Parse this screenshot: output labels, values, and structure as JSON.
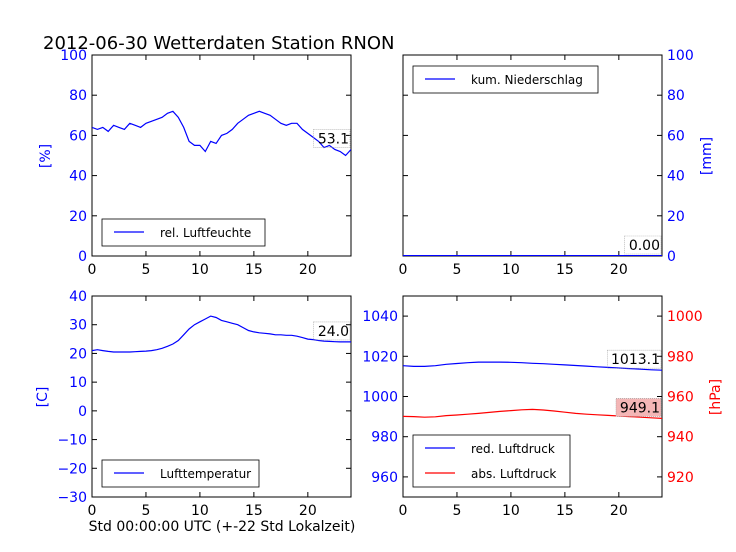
{
  "title": "2012-06-30 Wetterdaten Station RNON",
  "xlabel": "Std 00:00:00 UTC (+-22 Std Lokalzeit)",
  "colors": {
    "blue": "#0000ff",
    "red": "#ff0000",
    "axis": "#000000",
    "anno_bg": "#f4b6b6"
  },
  "chart_data": [
    {
      "type": "line",
      "id": "humidity",
      "ylabel": "[%]",
      "xlim": [
        0,
        24
      ],
      "ylim": [
        0,
        100
      ],
      "xticks": [
        0,
        5,
        10,
        15,
        20
      ],
      "yticks": [
        0,
        20,
        40,
        60,
        80,
        100
      ],
      "legend": "bottom-left",
      "annotation": "53.1",
      "series": [
        {
          "name": "rel. Luftfeuchte",
          "color": "#0000ff",
          "x": [
            0,
            0.5,
            1,
            1.5,
            2,
            2.5,
            3,
            3.5,
            4,
            4.5,
            5,
            5.5,
            6,
            6.5,
            7,
            7.5,
            8,
            8.5,
            9,
            9.5,
            10,
            10.5,
            11,
            11.5,
            12,
            12.5,
            13,
            13.5,
            14,
            14.5,
            15,
            15.5,
            16,
            16.5,
            17,
            17.5,
            18,
            18.5,
            19,
            19.5,
            20,
            20.5,
            21,
            21.5,
            22,
            22.5,
            23,
            23.5,
            24
          ],
          "y": [
            64,
            63,
            64,
            62,
            65,
            64,
            63,
            66,
            65,
            64,
            66,
            67,
            68,
            69,
            71,
            72,
            69,
            64,
            57,
            55,
            55,
            52,
            57,
            56,
            60,
            61,
            63,
            66,
            68,
            70,
            71,
            72,
            71,
            70,
            68,
            66,
            65,
            66,
            66,
            63,
            61,
            59,
            57,
            54,
            55,
            53,
            52,
            50,
            53
          ]
        }
      ]
    },
    {
      "type": "line",
      "id": "precipitation",
      "ylabel": "[mm]",
      "xlim": [
        0,
        24
      ],
      "ylim": [
        0,
        100
      ],
      "xticks": [
        0,
        5,
        10,
        15,
        20
      ],
      "yticks": [
        0,
        20,
        40,
        60,
        80,
        100
      ],
      "legend": "top-left",
      "annotation": "0.00",
      "series": [
        {
          "name": "kum. Niederschlag",
          "color": "#0000ff",
          "x": [
            0,
            24
          ],
          "y": [
            0,
            0
          ]
        }
      ]
    },
    {
      "type": "line",
      "id": "temperature",
      "ylabel": "[C]",
      "xlim": [
        0,
        24
      ],
      "ylim": [
        -30,
        40
      ],
      "xticks": [
        0,
        5,
        10,
        15,
        20
      ],
      "yticks": [
        -30,
        -20,
        -10,
        0,
        10,
        20,
        30,
        40
      ],
      "legend": "bottom-left",
      "annotation": "24.0",
      "series": [
        {
          "name": "Lufttemperatur",
          "color": "#0000ff",
          "x": [
            0,
            0.5,
            1,
            1.5,
            2,
            2.5,
            3,
            3.5,
            4,
            4.5,
            5,
            5.5,
            6,
            6.5,
            7,
            7.5,
            8,
            8.5,
            9,
            9.5,
            10,
            10.5,
            11,
            11.5,
            12,
            12.5,
            13,
            13.5,
            14,
            14.5,
            15,
            15.5,
            16,
            16.5,
            17,
            17.5,
            18,
            18.5,
            19,
            19.5,
            20,
            20.5,
            21,
            21.5,
            22,
            22.5,
            23,
            23.5,
            24
          ],
          "y": [
            21,
            21.3,
            21,
            20.7,
            20.5,
            20.5,
            20.5,
            20.5,
            20.6,
            20.7,
            20.8,
            21,
            21.3,
            21.8,
            22.5,
            23.3,
            24.5,
            26.5,
            28.5,
            30,
            31,
            32,
            33,
            32.5,
            31.5,
            31,
            30.5,
            30,
            29,
            28,
            27.5,
            27.2,
            27,
            26.8,
            26.5,
            26.5,
            26.3,
            26.3,
            26,
            25.5,
            25,
            24.8,
            24.5,
            24.3,
            24.2,
            24.1,
            24,
            24,
            24
          ]
        }
      ]
    },
    {
      "type": "line",
      "id": "pressure",
      "ylabel": "[hPa]",
      "xlim": [
        0,
        24
      ],
      "ylim": [
        950,
        1050
      ],
      "xticks": [
        0,
        5,
        10,
        15,
        20
      ],
      "yticks": [
        960,
        980,
        1000,
        1020,
        1040
      ],
      "ylim_right": [
        910,
        1010
      ],
      "yticks_right": [
        920,
        940,
        960,
        980,
        1000
      ],
      "legend": "bottom-left",
      "annotations": [
        "1013.1",
        "949.1"
      ],
      "series": [
        {
          "name": "red. Luftdruck",
          "color": "#0000ff",
          "axis": "left",
          "x": [
            0,
            1,
            2,
            3,
            4,
            5,
            6,
            7,
            8,
            9,
            10,
            11,
            12,
            13,
            14,
            15,
            16,
            17,
            18,
            19,
            20,
            21,
            22,
            23,
            24
          ],
          "y": [
            1015.3,
            1015,
            1015,
            1015.3,
            1016,
            1016.4,
            1016.8,
            1017.1,
            1017.1,
            1017.1,
            1017,
            1016.8,
            1016.5,
            1016.3,
            1016,
            1015.7,
            1015.4,
            1015.1,
            1014.8,
            1014.5,
            1014.2,
            1013.9,
            1013.6,
            1013.3,
            1013.1
          ]
        },
        {
          "name": "abs. Luftdruck",
          "color": "#ff0000",
          "axis": "right",
          "x": [
            0,
            1,
            2,
            3,
            4,
            5,
            6,
            7,
            8,
            9,
            10,
            11,
            12,
            13,
            14,
            15,
            16,
            17,
            18,
            19,
            20,
            21,
            22,
            23,
            24
          ],
          "y": [
            950.1,
            950,
            949.7,
            949.9,
            950.5,
            950.8,
            951.2,
            951.6,
            952.1,
            952.6,
            953,
            953.4,
            953.6,
            953.3,
            952.8,
            952.2,
            951.6,
            951.2,
            950.9,
            950.6,
            950.3,
            950,
            949.7,
            949.4,
            949.1
          ]
        }
      ]
    }
  ]
}
